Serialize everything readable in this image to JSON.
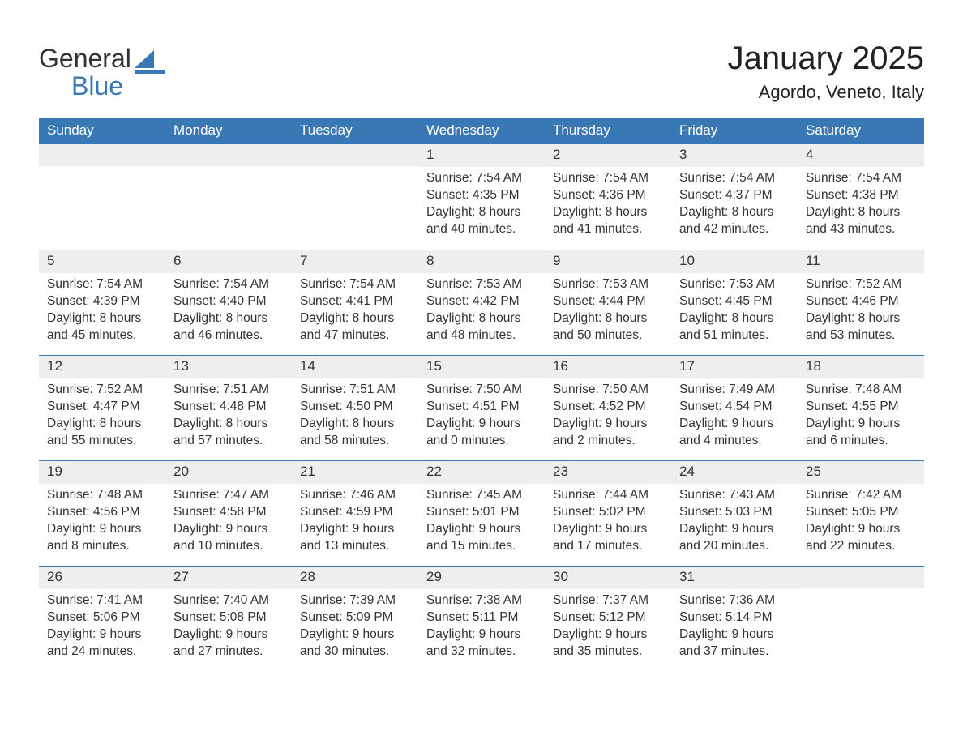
{
  "logo": {
    "text_a": "General",
    "text_b": "Blue",
    "icon_color": "#3a78b5"
  },
  "title": "January 2025",
  "location": "Agordo, Veneto, Italy",
  "colors": {
    "header_bg": "#3a78b5",
    "header_text": "#ffffff",
    "daynum_bg": "#eeeeee",
    "border": "#3a78b5",
    "text": "#333333",
    "background": "#ffffff"
  },
  "day_names": [
    "Sunday",
    "Monday",
    "Tuesday",
    "Wednesday",
    "Thursday",
    "Friday",
    "Saturday"
  ],
  "labels": {
    "sunrise": "Sunrise:",
    "sunset": "Sunset:",
    "daylight": "Daylight:"
  },
  "weeks": [
    [
      null,
      null,
      null,
      {
        "n": "1",
        "sunrise": "7:54 AM",
        "sunset": "4:35 PM",
        "daylight": "8 hours and 40 minutes."
      },
      {
        "n": "2",
        "sunrise": "7:54 AM",
        "sunset": "4:36 PM",
        "daylight": "8 hours and 41 minutes."
      },
      {
        "n": "3",
        "sunrise": "7:54 AM",
        "sunset": "4:37 PM",
        "daylight": "8 hours and 42 minutes."
      },
      {
        "n": "4",
        "sunrise": "7:54 AM",
        "sunset": "4:38 PM",
        "daylight": "8 hours and 43 minutes."
      }
    ],
    [
      {
        "n": "5",
        "sunrise": "7:54 AM",
        "sunset": "4:39 PM",
        "daylight": "8 hours and 45 minutes."
      },
      {
        "n": "6",
        "sunrise": "7:54 AM",
        "sunset": "4:40 PM",
        "daylight": "8 hours and 46 minutes."
      },
      {
        "n": "7",
        "sunrise": "7:54 AM",
        "sunset": "4:41 PM",
        "daylight": "8 hours and 47 minutes."
      },
      {
        "n": "8",
        "sunrise": "7:53 AM",
        "sunset": "4:42 PM",
        "daylight": "8 hours and 48 minutes."
      },
      {
        "n": "9",
        "sunrise": "7:53 AM",
        "sunset": "4:44 PM",
        "daylight": "8 hours and 50 minutes."
      },
      {
        "n": "10",
        "sunrise": "7:53 AM",
        "sunset": "4:45 PM",
        "daylight": "8 hours and 51 minutes."
      },
      {
        "n": "11",
        "sunrise": "7:52 AM",
        "sunset": "4:46 PM",
        "daylight": "8 hours and 53 minutes."
      }
    ],
    [
      {
        "n": "12",
        "sunrise": "7:52 AM",
        "sunset": "4:47 PM",
        "daylight": "8 hours and 55 minutes."
      },
      {
        "n": "13",
        "sunrise": "7:51 AM",
        "sunset": "4:48 PM",
        "daylight": "8 hours and 57 minutes."
      },
      {
        "n": "14",
        "sunrise": "7:51 AM",
        "sunset": "4:50 PM",
        "daylight": "8 hours and 58 minutes."
      },
      {
        "n": "15",
        "sunrise": "7:50 AM",
        "sunset": "4:51 PM",
        "daylight": "9 hours and 0 minutes."
      },
      {
        "n": "16",
        "sunrise": "7:50 AM",
        "sunset": "4:52 PM",
        "daylight": "9 hours and 2 minutes."
      },
      {
        "n": "17",
        "sunrise": "7:49 AM",
        "sunset": "4:54 PM",
        "daylight": "9 hours and 4 minutes."
      },
      {
        "n": "18",
        "sunrise": "7:48 AM",
        "sunset": "4:55 PM",
        "daylight": "9 hours and 6 minutes."
      }
    ],
    [
      {
        "n": "19",
        "sunrise": "7:48 AM",
        "sunset": "4:56 PM",
        "daylight": "9 hours and 8 minutes."
      },
      {
        "n": "20",
        "sunrise": "7:47 AM",
        "sunset": "4:58 PM",
        "daylight": "9 hours and 10 minutes."
      },
      {
        "n": "21",
        "sunrise": "7:46 AM",
        "sunset": "4:59 PM",
        "daylight": "9 hours and 13 minutes."
      },
      {
        "n": "22",
        "sunrise": "7:45 AM",
        "sunset": "5:01 PM",
        "daylight": "9 hours and 15 minutes."
      },
      {
        "n": "23",
        "sunrise": "7:44 AM",
        "sunset": "5:02 PM",
        "daylight": "9 hours and 17 minutes."
      },
      {
        "n": "24",
        "sunrise": "7:43 AM",
        "sunset": "5:03 PM",
        "daylight": "9 hours and 20 minutes."
      },
      {
        "n": "25",
        "sunrise": "7:42 AM",
        "sunset": "5:05 PM",
        "daylight": "9 hours and 22 minutes."
      }
    ],
    [
      {
        "n": "26",
        "sunrise": "7:41 AM",
        "sunset": "5:06 PM",
        "daylight": "9 hours and 24 minutes."
      },
      {
        "n": "27",
        "sunrise": "7:40 AM",
        "sunset": "5:08 PM",
        "daylight": "9 hours and 27 minutes."
      },
      {
        "n": "28",
        "sunrise": "7:39 AM",
        "sunset": "5:09 PM",
        "daylight": "9 hours and 30 minutes."
      },
      {
        "n": "29",
        "sunrise": "7:38 AM",
        "sunset": "5:11 PM",
        "daylight": "9 hours and 32 minutes."
      },
      {
        "n": "30",
        "sunrise": "7:37 AM",
        "sunset": "5:12 PM",
        "daylight": "9 hours and 35 minutes."
      },
      {
        "n": "31",
        "sunrise": "7:36 AM",
        "sunset": "5:14 PM",
        "daylight": "9 hours and 37 minutes."
      },
      null
    ]
  ]
}
